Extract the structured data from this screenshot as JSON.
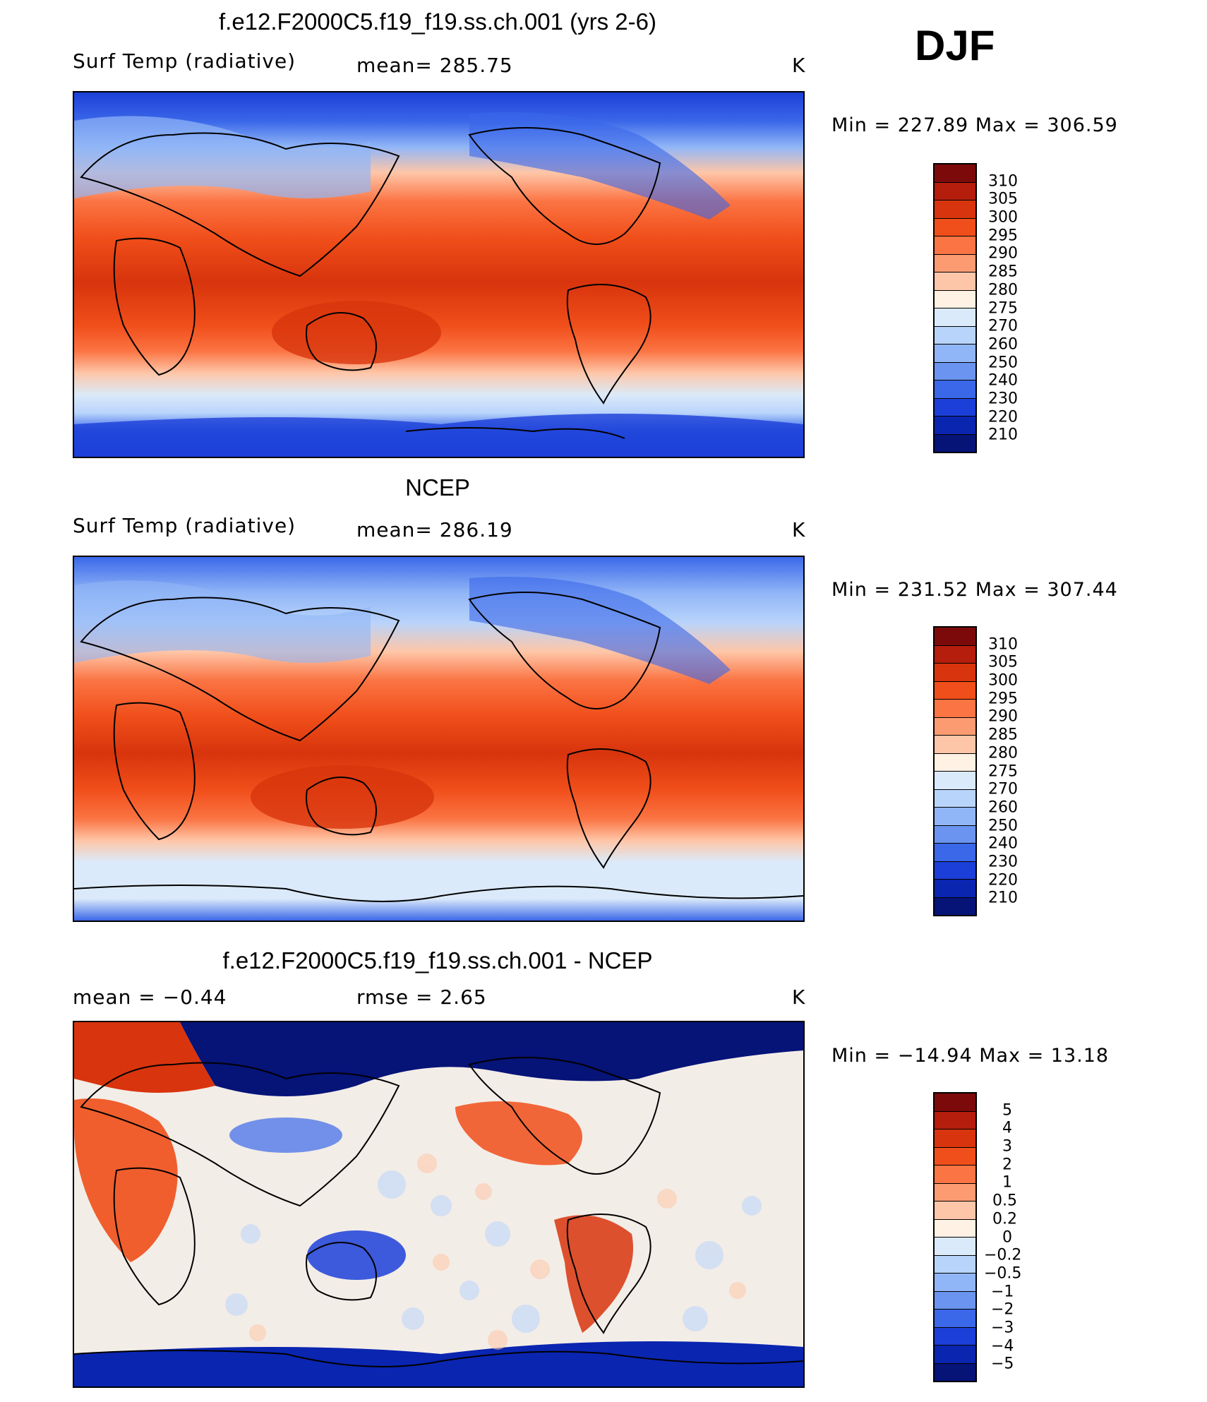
{
  "season": "DJF",
  "panels": [
    {
      "title": "f.e12.F2000C5.f19_f19.ss.ch.001 (yrs 2-6)",
      "left_label": "Surf Temp (radiative)",
      "center_label": "mean=  285.75",
      "units": "K",
      "minmax": "Min  =  227.89  Max  =  306.59",
      "colorbar_labels": [
        "310",
        "305",
        "300",
        "295",
        "290",
        "285",
        "280",
        "275",
        "270",
        "260",
        "250",
        "240",
        "230",
        "220",
        "210"
      ]
    },
    {
      "title": "NCEP",
      "left_label": "Surf Temp (radiative)",
      "center_label": "mean=  286.19",
      "units": "K",
      "minmax": "Min  =  231.52  Max  =  307.44",
      "colorbar_labels": [
        "310",
        "305",
        "300",
        "295",
        "290",
        "285",
        "280",
        "275",
        "270",
        "260",
        "250",
        "240",
        "230",
        "220",
        "210"
      ]
    },
    {
      "title": "f.e12.F2000C5.f19_f19.ss.ch.001 - NCEP",
      "left_label": "mean =     −0.44",
      "center_label": "rmse =      2.65",
      "units": "K",
      "minmax": "Min  =  −14.94  Max  =    13.18",
      "colorbar_labels": [
        "5",
        "4",
        "3",
        "2",
        "1",
        "0.5",
        "0.2",
        "0",
        "−0.2",
        "−0.5",
        "−1",
        "−2",
        "−3",
        "−4",
        "−5"
      ]
    }
  ],
  "colors": {
    "temperature_scale": [
      "#7d0a0a",
      "#b51d0c",
      "#d8340d",
      "#f04e1a",
      "#fb7443",
      "#fc9b72",
      "#fec6a8",
      "#fff1e4",
      "#dbeafa",
      "#b9d4fb",
      "#91b6f7",
      "#6a94ef",
      "#3b68e9",
      "#1b3fd8",
      "#0a25b0",
      "#061377"
    ],
    "difference_scale": [
      "#7d0a0a",
      "#b51d0c",
      "#d8340d",
      "#f04e1a",
      "#fb7443",
      "#fc9b72",
      "#fec6a8",
      "#fff1e4",
      "#dbeafa",
      "#b9d4fb",
      "#91b6f7",
      "#6a94ef",
      "#3b68e9",
      "#1b3fd8",
      "#0a25b0",
      "#061377"
    ]
  }
}
